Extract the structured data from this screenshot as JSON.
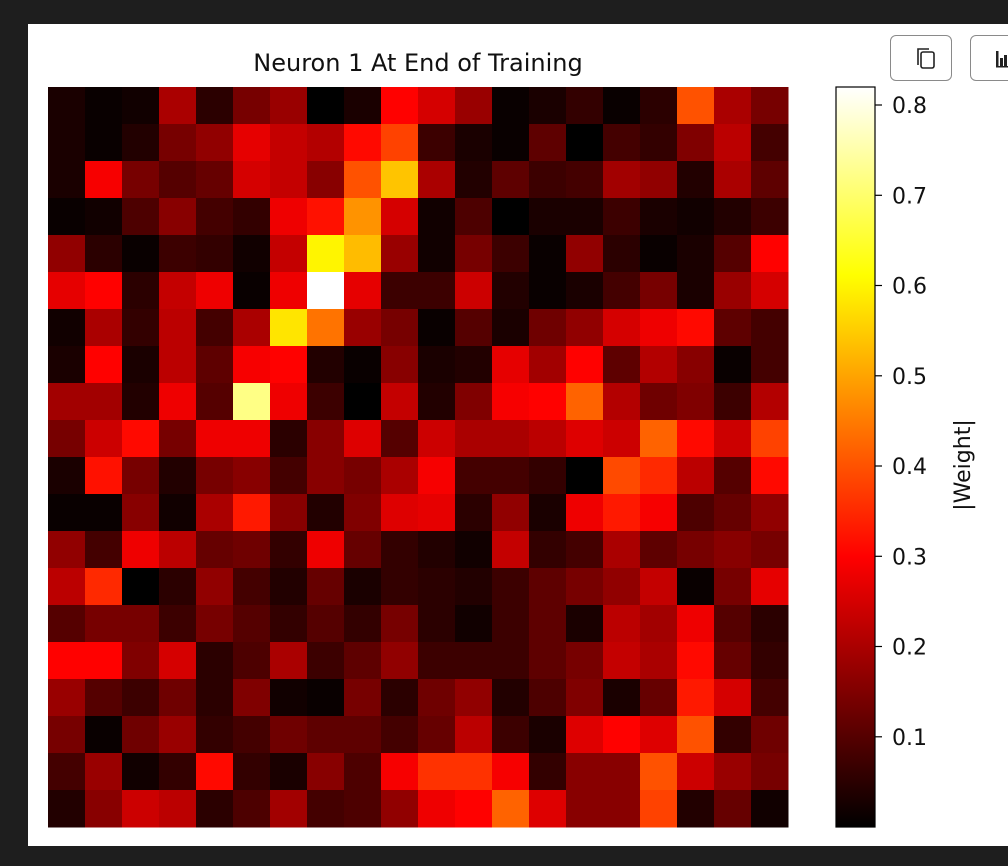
{
  "toolbar": {
    "copy_icon": "copy-icon",
    "chart_icon": "bar-chart-icon"
  },
  "chart_data": {
    "type": "heatmap",
    "title": "Neuron 1 At End of Training",
    "colormap": "hot",
    "grid": false,
    "colorbar": {
      "label": "|Weight|",
      "range": [
        0.0,
        0.82
      ],
      "ticks": [
        0.1,
        0.2,
        0.3,
        0.4,
        0.5,
        0.6,
        0.7,
        0.8
      ],
      "tick_labels": [
        "0.1",
        "0.2",
        "0.3",
        "0.4",
        "0.5",
        "0.6",
        "0.7",
        "0.8"
      ]
    },
    "rows": 20,
    "cols": 20,
    "values": [
      [
        0.03,
        0.01,
        0.02,
        0.2,
        0.05,
        0.14,
        0.18,
        0.0,
        0.03,
        0.3,
        0.25,
        0.18,
        0.01,
        0.03,
        0.06,
        0.01,
        0.05,
        0.4,
        0.2,
        0.14
      ],
      [
        0.03,
        0.01,
        0.04,
        0.14,
        0.17,
        0.27,
        0.23,
        0.21,
        0.31,
        0.38,
        0.07,
        0.03,
        0.01,
        0.11,
        0.0,
        0.08,
        0.06,
        0.15,
        0.22,
        0.08
      ],
      [
        0.03,
        0.29,
        0.14,
        0.1,
        0.12,
        0.25,
        0.23,
        0.16,
        0.4,
        0.54,
        0.2,
        0.04,
        0.11,
        0.07,
        0.08,
        0.19,
        0.17,
        0.04,
        0.2,
        0.11
      ],
      [
        0.01,
        0.02,
        0.09,
        0.16,
        0.08,
        0.06,
        0.28,
        0.32,
        0.48,
        0.25,
        0.02,
        0.09,
        0.0,
        0.03,
        0.03,
        0.07,
        0.03,
        0.02,
        0.04,
        0.07
      ],
      [
        0.17,
        0.05,
        0.01,
        0.07,
        0.06,
        0.02,
        0.23,
        0.6,
        0.53,
        0.18,
        0.02,
        0.14,
        0.07,
        0.01,
        0.17,
        0.05,
        0.01,
        0.03,
        0.1,
        0.3
      ],
      [
        0.27,
        0.3,
        0.05,
        0.23,
        0.28,
        0.01,
        0.28,
        0.82,
        0.27,
        0.07,
        0.07,
        0.24,
        0.04,
        0.01,
        0.03,
        0.08,
        0.14,
        0.03,
        0.18,
        0.25
      ],
      [
        0.02,
        0.2,
        0.06,
        0.22,
        0.08,
        0.2,
        0.58,
        0.44,
        0.18,
        0.14,
        0.01,
        0.1,
        0.03,
        0.13,
        0.17,
        0.25,
        0.28,
        0.31,
        0.11,
        0.08
      ],
      [
        0.03,
        0.3,
        0.03,
        0.22,
        0.11,
        0.29,
        0.3,
        0.04,
        0.01,
        0.16,
        0.03,
        0.04,
        0.27,
        0.19,
        0.3,
        0.11,
        0.21,
        0.16,
        0.01,
        0.08
      ],
      [
        0.19,
        0.19,
        0.04,
        0.28,
        0.1,
        0.72,
        0.28,
        0.07,
        0.0,
        0.23,
        0.04,
        0.15,
        0.29,
        0.3,
        0.42,
        0.21,
        0.13,
        0.15,
        0.07,
        0.21
      ],
      [
        0.14,
        0.24,
        0.31,
        0.14,
        0.28,
        0.28,
        0.05,
        0.16,
        0.26,
        0.1,
        0.24,
        0.2,
        0.2,
        0.22,
        0.26,
        0.24,
        0.42,
        0.31,
        0.24,
        0.38
      ],
      [
        0.03,
        0.32,
        0.14,
        0.04,
        0.14,
        0.16,
        0.08,
        0.16,
        0.14,
        0.2,
        0.29,
        0.08,
        0.08,
        0.06,
        0.0,
        0.39,
        0.35,
        0.22,
        0.1,
        0.31
      ],
      [
        0.01,
        0.01,
        0.16,
        0.02,
        0.2,
        0.33,
        0.16,
        0.04,
        0.15,
        0.26,
        0.27,
        0.05,
        0.17,
        0.03,
        0.28,
        0.33,
        0.29,
        0.09,
        0.12,
        0.17
      ],
      [
        0.17,
        0.08,
        0.28,
        0.22,
        0.12,
        0.13,
        0.06,
        0.28,
        0.12,
        0.06,
        0.04,
        0.02,
        0.23,
        0.06,
        0.08,
        0.2,
        0.11,
        0.14,
        0.16,
        0.14
      ],
      [
        0.22,
        0.35,
        0.0,
        0.05,
        0.17,
        0.08,
        0.04,
        0.12,
        0.03,
        0.06,
        0.05,
        0.04,
        0.07,
        0.11,
        0.14,
        0.17,
        0.23,
        0.01,
        0.14,
        0.27
      ],
      [
        0.1,
        0.14,
        0.14,
        0.07,
        0.14,
        0.1,
        0.06,
        0.1,
        0.06,
        0.14,
        0.05,
        0.02,
        0.07,
        0.11,
        0.03,
        0.22,
        0.19,
        0.28,
        0.1,
        0.05
      ],
      [
        0.3,
        0.3,
        0.15,
        0.25,
        0.05,
        0.09,
        0.2,
        0.07,
        0.11,
        0.17,
        0.07,
        0.07,
        0.07,
        0.11,
        0.14,
        0.23,
        0.2,
        0.31,
        0.12,
        0.06
      ],
      [
        0.18,
        0.1,
        0.07,
        0.13,
        0.05,
        0.15,
        0.02,
        0.01,
        0.14,
        0.05,
        0.13,
        0.17,
        0.04,
        0.09,
        0.15,
        0.03,
        0.12,
        0.33,
        0.25,
        0.08
      ],
      [
        0.14,
        0.01,
        0.13,
        0.18,
        0.06,
        0.08,
        0.13,
        0.11,
        0.11,
        0.08,
        0.12,
        0.22,
        0.07,
        0.03,
        0.26,
        0.3,
        0.26,
        0.4,
        0.06,
        0.13
      ],
      [
        0.08,
        0.18,
        0.02,
        0.06,
        0.31,
        0.06,
        0.03,
        0.16,
        0.09,
        0.29,
        0.36,
        0.36,
        0.29,
        0.06,
        0.16,
        0.16,
        0.4,
        0.24,
        0.18,
        0.14
      ],
      [
        0.04,
        0.16,
        0.24,
        0.22,
        0.05,
        0.09,
        0.19,
        0.08,
        0.09,
        0.17,
        0.28,
        0.3,
        0.42,
        0.26,
        0.16,
        0.16,
        0.38,
        0.04,
        0.12,
        0.02
      ]
    ]
  }
}
